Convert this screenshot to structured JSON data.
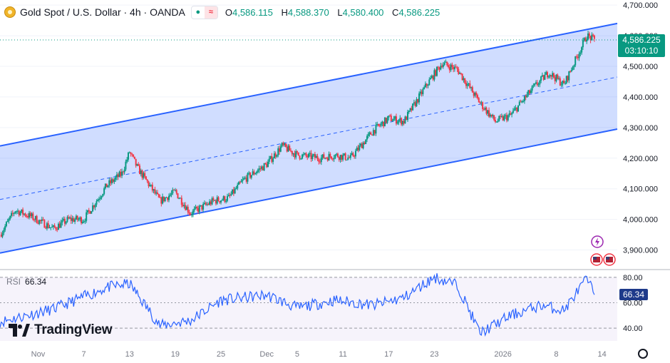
{
  "header": {
    "symbol_title": "Gold Spot / U.S. Dollar · 4h · OANDA",
    "open_label": "O",
    "open": "4,586.115",
    "high_label": "H",
    "high": "4,588.370",
    "low_label": "L",
    "low": "4,580.400",
    "close_label": "C",
    "close": "4,586.225",
    "icons": [
      "gold-coin-icon",
      "market-open-dot-icon",
      "wave-icon"
    ]
  },
  "price_tag": {
    "price": "4,586.225",
    "countdown": "03:10:10"
  },
  "rsi": {
    "label": "RSI",
    "value": "66.34",
    "levels": [
      80,
      60,
      40
    ]
  },
  "branding": {
    "text": "TradingView"
  },
  "colors": {
    "up": "#089981",
    "down": "#f23645",
    "channel": "#2962ff",
    "rsi_line": "#2962ff"
  },
  "chart_data": [
    {
      "type": "candlestick",
      "title": "Gold Spot / U.S. Dollar · 4h · OANDA",
      "y_ticks": [
        3900,
        4000,
        4100,
        4200,
        4300,
        4400,
        4500,
        4600,
        4700
      ],
      "y_tick_labels": [
        "3,900.000",
        "4,000.000",
        "4,100.000",
        "4,200.000",
        "4,300.000",
        "4,400.000",
        "4,500.000",
        "4,600.000",
        "4,700.000"
      ],
      "ylim": [
        3850,
        4705
      ],
      "x_ticks": [
        "Nov",
        "7",
        "13",
        "19",
        "25",
        "Dec",
        "5",
        "11",
        "17",
        "23",
        "2026",
        "8",
        "14"
      ],
      "x_range": [
        "2025-10-27",
        "2026-01-16"
      ],
      "close_path": [
        [
          "2025-10-27",
          3950
        ],
        [
          "2025-10-29",
          4030
        ],
        [
          "2025-10-31",
          4010
        ],
        [
          "2025-11-03",
          3970
        ],
        [
          "2025-11-05",
          4000
        ],
        [
          "2025-11-07",
          4000
        ],
        [
          "2025-11-10",
          4110
        ],
        [
          "2025-11-12",
          4150
        ],
        [
          "2025-11-13",
          4220
        ],
        [
          "2025-11-14",
          4170
        ],
        [
          "2025-11-17",
          4060
        ],
        [
          "2025-11-19",
          4090
        ],
        [
          "2025-11-21",
          4020
        ],
        [
          "2025-11-24",
          4060
        ],
        [
          "2025-11-26",
          4070
        ],
        [
          "2025-11-28",
          4130
        ],
        [
          "2025-12-01",
          4180
        ],
        [
          "2025-12-03",
          4240
        ],
        [
          "2025-12-05",
          4210
        ],
        [
          "2025-12-08",
          4200
        ],
        [
          "2025-12-10",
          4210
        ],
        [
          "2025-12-12",
          4200
        ],
        [
          "2025-12-15",
          4290
        ],
        [
          "2025-12-17",
          4330
        ],
        [
          "2025-12-19",
          4320
        ],
        [
          "2025-12-22",
          4440
        ],
        [
          "2025-12-24",
          4510
        ],
        [
          "2025-12-26",
          4490
        ],
        [
          "2025-12-29",
          4380
        ],
        [
          "2025-12-31",
          4320
        ],
        [
          "2026-01-02",
          4340
        ],
        [
          "2026-01-05",
          4430
        ],
        [
          "2026-01-07",
          4480
        ],
        [
          "2026-01-09",
          4440
        ],
        [
          "2026-01-12",
          4600
        ],
        [
          "2026-01-13",
          4586
        ]
      ],
      "last_close": 4586.225,
      "channel": {
        "upper": [
          [
            "2025-10-27",
            4240
          ],
          [
            "2026-01-16",
            4640
          ]
        ],
        "middle": [
          [
            "2025-10-27",
            4065
          ],
          [
            "2026-01-16",
            4465
          ]
        ],
        "lower": [
          [
            "2025-10-27",
            3890
          ],
          [
            "2026-01-16",
            4295
          ]
        ]
      }
    },
    {
      "type": "line",
      "title": "RSI",
      "ylim": [
        30,
        85
      ],
      "y_ticks": [
        40,
        60,
        80
      ],
      "y_tick_labels": [
        "40.00",
        "60.00",
        "80.00"
      ],
      "series": [
        {
          "name": "RSI",
          "points": [
            [
              "2025-10-27",
              45
            ],
            [
              "2025-11-03",
              55
            ],
            [
              "2025-11-10",
              72
            ],
            [
              "2025-11-13",
              75
            ],
            [
              "2025-11-17",
              42
            ],
            [
              "2025-11-21",
              46
            ],
            [
              "2025-11-25",
              62
            ],
            [
              "2025-12-01",
              66
            ],
            [
              "2025-12-05",
              56
            ],
            [
              "2025-12-10",
              62
            ],
            [
              "2025-12-15",
              58
            ],
            [
              "2025-12-19",
              64
            ],
            [
              "2025-12-23",
              80
            ],
            [
              "2025-12-26",
              74
            ],
            [
              "2025-12-29",
              36
            ],
            [
              "2026-01-02",
              50
            ],
            [
              "2026-01-06",
              58
            ],
            [
              "2026-01-09",
              54
            ],
            [
              "2026-01-12",
              79
            ],
            [
              "2026-01-13",
              66.34
            ]
          ]
        }
      ],
      "last_value": 66.34
    }
  ]
}
